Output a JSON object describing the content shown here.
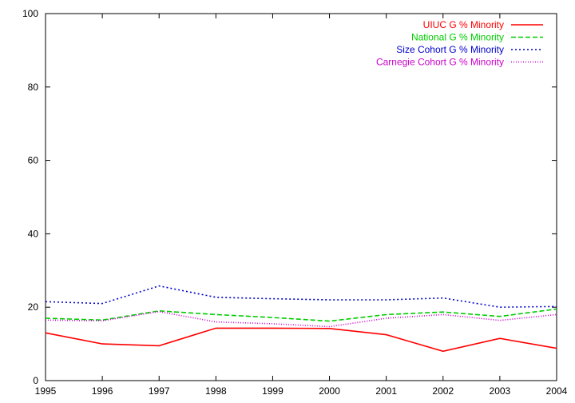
{
  "chart_data": {
    "type": "line",
    "title": "",
    "xlabel": "",
    "ylabel": "",
    "x": [
      1995,
      1996,
      1997,
      1998,
      1999,
      2000,
      2001,
      2002,
      2003,
      2004
    ],
    "xlim": [
      1995,
      2004
    ],
    "ylim": [
      0,
      100
    ],
    "xticks": [
      "1995",
      "1996",
      "1997",
      "1998",
      "1999",
      "2000",
      "2001",
      "2002",
      "2003",
      "2004"
    ],
    "yticks": [
      "0",
      "20",
      "40",
      "60",
      "80",
      "100"
    ],
    "grid": false,
    "legend_position": "top-right",
    "series": [
      {
        "name": "UIUC G % Minority",
        "color": "#ff0000",
        "dash": "solid",
        "values": [
          13.0,
          10.0,
          9.5,
          14.3,
          14.3,
          14.2,
          12.5,
          8.0,
          11.5,
          8.8
        ]
      },
      {
        "name": "National G % Minority",
        "color": "#00cc00",
        "dash": "dashed",
        "values": [
          17.0,
          16.5,
          19.0,
          18.0,
          17.2,
          16.2,
          18.0,
          18.7,
          17.5,
          19.5
        ]
      },
      {
        "name": "Size Cohort G % Minority",
        "color": "#0000cc",
        "dash": "dotted",
        "values": [
          21.5,
          21.0,
          25.8,
          22.7,
          22.3,
          22.0,
          22.0,
          22.5,
          20.0,
          20.2
        ]
      },
      {
        "name": "Carnegie Cohort G % Minority",
        "color": "#cc00cc",
        "dash": "dense-dotted",
        "values": [
          16.5,
          16.3,
          18.8,
          16.0,
          15.5,
          14.7,
          17.0,
          18.0,
          16.4,
          18.0
        ]
      }
    ]
  }
}
